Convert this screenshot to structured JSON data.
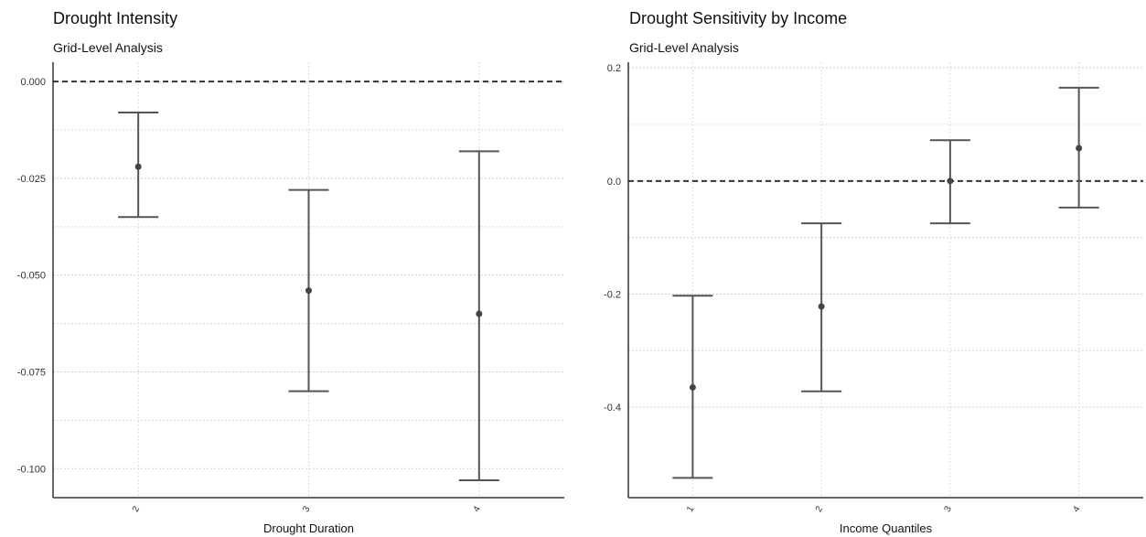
{
  "chart_data": [
    {
      "type": "scatter",
      "title": "Drought Intensity",
      "subtitle": "Grid-Level Analysis",
      "xlabel": "Drought Duration",
      "ylabel": "",
      "categories": [
        "2",
        "3",
        "4"
      ],
      "series": [
        {
          "estimate": [
            -0.022,
            -0.054,
            -0.06
          ],
          "lower": [
            -0.035,
            -0.08,
            -0.103
          ],
          "upper": [
            -0.008,
            -0.028,
            -0.018
          ]
        }
      ],
      "reference_line": 0.0,
      "ylim": [
        -0.1075,
        0.005
      ],
      "yticks": [
        0.0,
        -0.025,
        -0.05,
        -0.075,
        -0.1
      ],
      "ytick_labels": [
        "0.000",
        "-0.025",
        "-0.050",
        "-0.075",
        "-0.100"
      ],
      "grid": true
    },
    {
      "type": "scatter",
      "title": "Drought Sensitivity by Income",
      "subtitle": "Grid-Level Analysis",
      "xlabel": "Income Quantiles",
      "ylabel": "",
      "categories": [
        "1",
        "2",
        "3",
        "4"
      ],
      "series": [
        {
          "estimate": [
            -0.365,
            -0.222,
            0.0,
            0.058
          ],
          "lower": [
            -0.525,
            -0.372,
            -0.075,
            -0.047
          ],
          "upper": [
            -0.203,
            -0.075,
            0.072,
            0.165
          ]
        }
      ],
      "reference_line": 0.0,
      "ylim": [
        -0.56,
        0.21
      ],
      "yticks": [
        0.2,
        0.0,
        -0.2,
        -0.4
      ],
      "ytick_labels": [
        "0.2",
        "0.0",
        "-0.2",
        "-0.4"
      ],
      "grid": true
    }
  ]
}
